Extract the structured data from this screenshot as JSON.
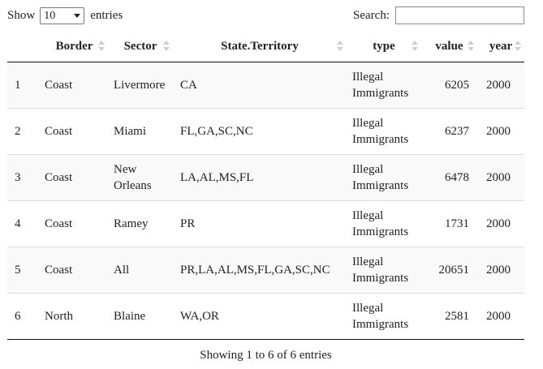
{
  "length_menu": {
    "show_label": "Show",
    "selected": "10",
    "entries_label": "entries"
  },
  "search": {
    "label": "Search:",
    "value": ""
  },
  "columns": [
    "",
    "Border",
    "Sector",
    "State.Territory",
    "type",
    "value",
    "year"
  ],
  "rows": [
    {
      "idx": "1",
      "border": "Coast",
      "sector": "Livermore",
      "state": "CA",
      "type": "Illegal Immigrants",
      "value": "6205",
      "year": "2000"
    },
    {
      "idx": "2",
      "border": "Coast",
      "sector": "Miami",
      "state": "FL,GA,SC,NC",
      "type": "Illegal Immigrants",
      "value": "6237",
      "year": "2000"
    },
    {
      "idx": "3",
      "border": "Coast",
      "sector": "New Orleans",
      "state": "LA,AL,MS,FL",
      "type": "Illegal Immigrants",
      "value": "6478",
      "year": "2000"
    },
    {
      "idx": "4",
      "border": "Coast",
      "sector": "Ramey",
      "state": "PR",
      "type": "Illegal Immigrants",
      "value": "1731",
      "year": "2000"
    },
    {
      "idx": "5",
      "border": "Coast",
      "sector": "All",
      "state": "PR,LA,AL,MS,FL,GA,SC,NC",
      "type": "Illegal Immigrants",
      "value": "20651",
      "year": "2000"
    },
    {
      "idx": "6",
      "border": "North",
      "sector": "Blaine",
      "state": "WA,OR",
      "type": "Illegal Immigrants",
      "value": "2581",
      "year": "2000"
    }
  ],
  "info": "Showing 1 to 6 of 6 entries"
}
